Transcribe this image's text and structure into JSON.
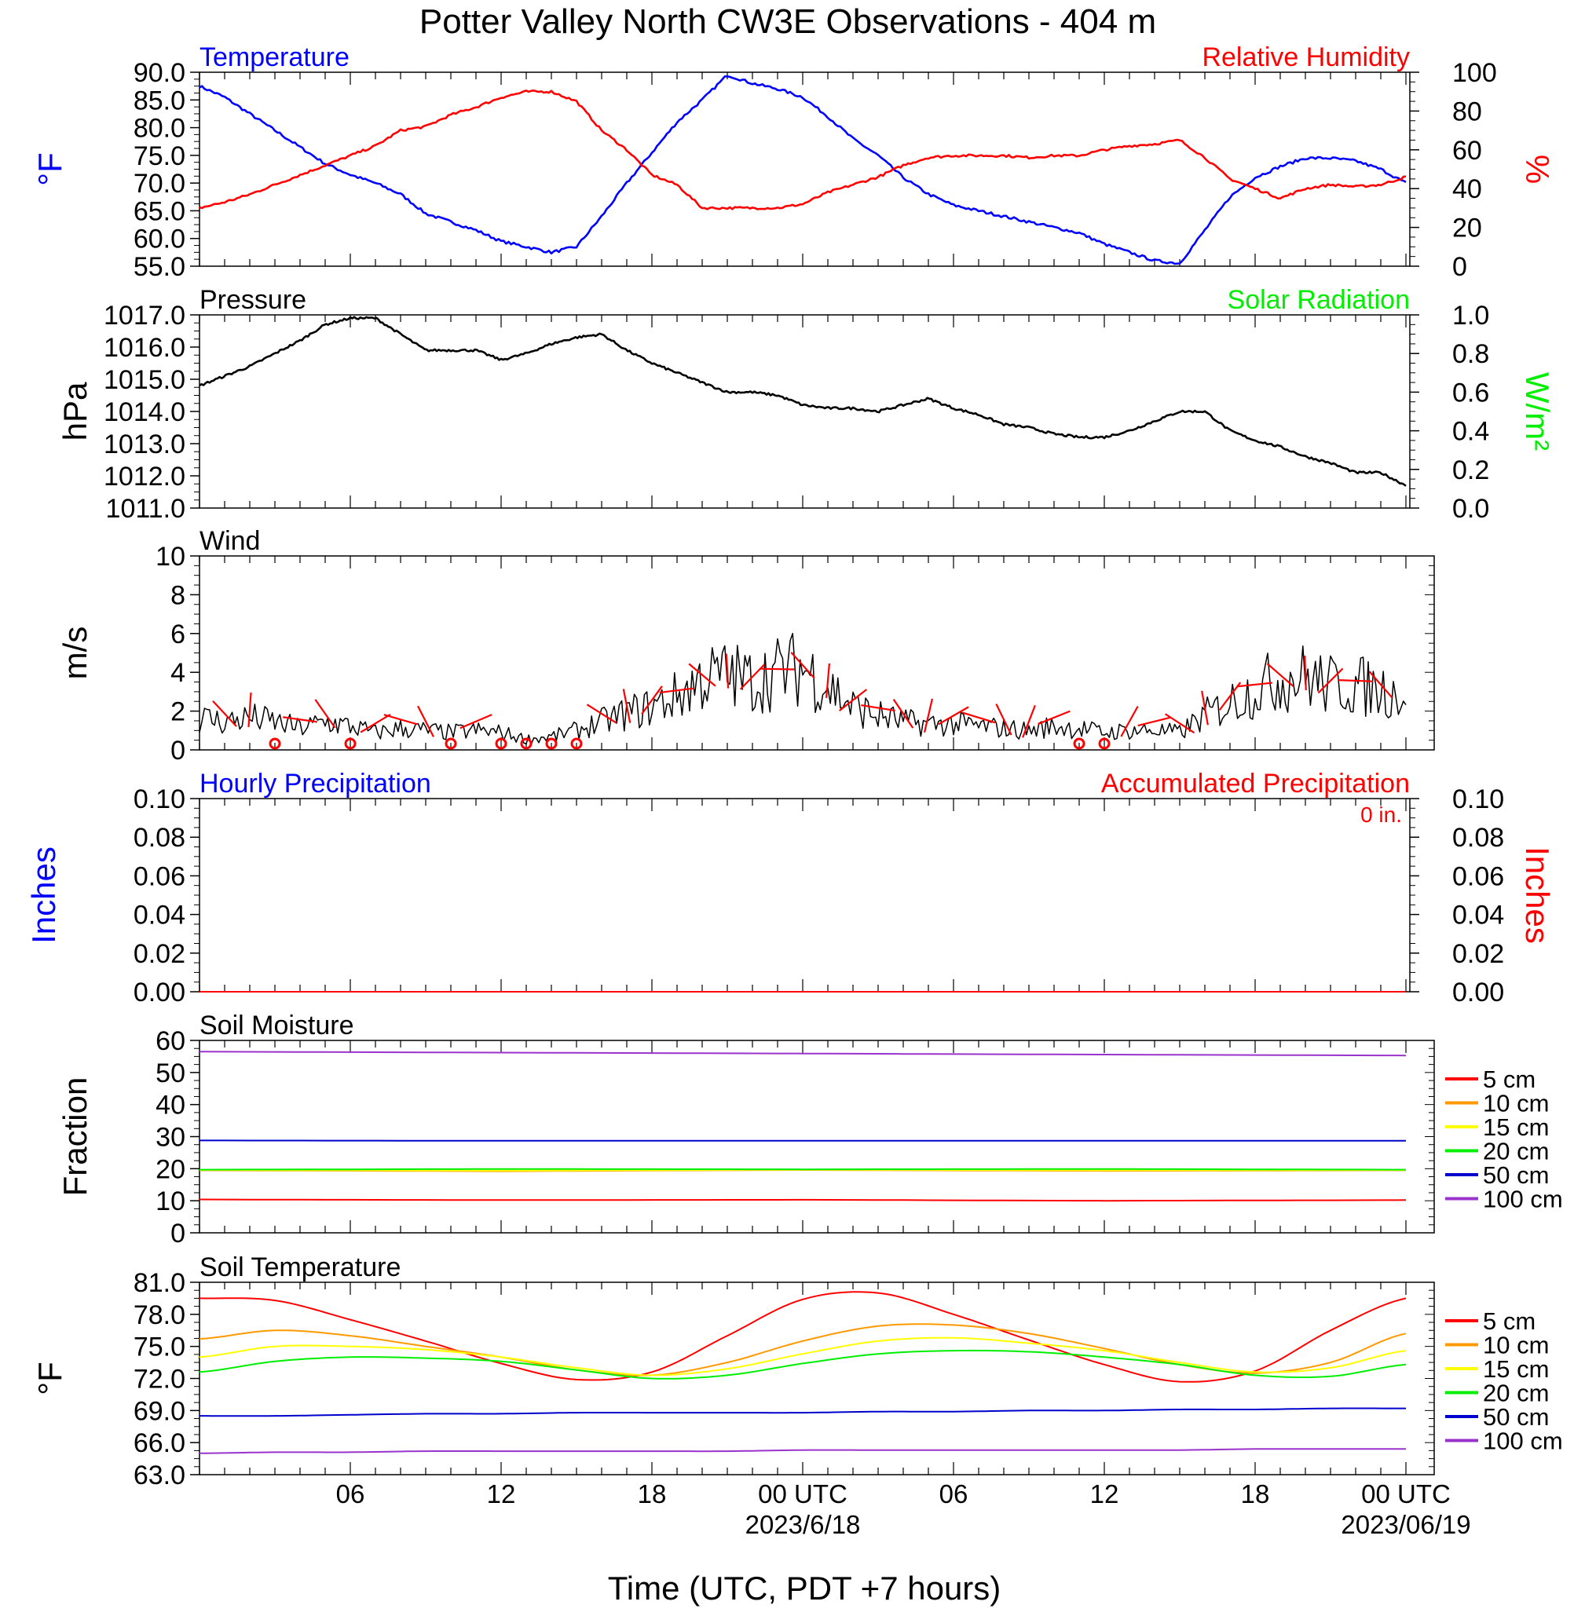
{
  "title": "Potter Valley North CW3E Observations - 404 m",
  "xlabel": "Time (UTC, PDT +7 hours)",
  "x_ticks": [
    {
      "hour": 6,
      "label": "06",
      "date": ""
    },
    {
      "hour": 12,
      "label": "12",
      "date": ""
    },
    {
      "hour": 18,
      "label": "18",
      "date": ""
    },
    {
      "hour": 24,
      "label": "00 UTC",
      "date": "2023/6/18"
    },
    {
      "hour": 30,
      "label": "06",
      "date": ""
    },
    {
      "hour": 36,
      "label": "12",
      "date": ""
    },
    {
      "hour": 42,
      "label": "18",
      "date": ""
    },
    {
      "hour": 48,
      "label": "00 UTC",
      "date": "2023/06/19"
    }
  ],
  "colors": {
    "blue": "#0000ff",
    "red": "#ff0000",
    "green": "#00ee00",
    "black": "#000000",
    "orange": "#ff9900",
    "yellow": "#ffff00",
    "purple": "#9933cc"
  },
  "chart_data": [
    {
      "id": "temp_rh",
      "type": "line",
      "title_left": "Temperature",
      "title_right": "Relative Humidity",
      "ylabel_left": "°F",
      "ylabel_right": "%",
      "ylim_left": [
        55,
        90
      ],
      "ylim_right": [
        0,
        100
      ],
      "yticks_left": [
        "55.0",
        "60.0",
        "65.0",
        "70.0",
        "75.0",
        "80.0",
        "85.0",
        "90.0"
      ],
      "yticks_right": [
        "0",
        "20",
        "40",
        "60",
        "80",
        "100"
      ],
      "x_hours": [
        0,
        1,
        2,
        3,
        4,
        5,
        6,
        7,
        8,
        9,
        10,
        11,
        12,
        13,
        14,
        15,
        16,
        17,
        18,
        19,
        20,
        21,
        22,
        23,
        24,
        25,
        26,
        27,
        28,
        29,
        30,
        31,
        32,
        33,
        34,
        35,
        36,
        37,
        38,
        39,
        40,
        41,
        42,
        43,
        44,
        45,
        46,
        47,
        48
      ],
      "series": [
        {
          "name": "Temperature",
          "axis": "left",
          "color": "#0000ff",
          "values": [
            87.5,
            85.5,
            82.5,
            79.5,
            76.5,
            73.5,
            71.5,
            70.0,
            68.0,
            64.5,
            63.0,
            61.5,
            59.5,
            58.5,
            57.5,
            58.5,
            64.0,
            70.0,
            75.5,
            81.0,
            85.0,
            89.5,
            88.0,
            87.0,
            85.5,
            82.0,
            78.0,
            75.0,
            71.0,
            68.0,
            66.0,
            65.0,
            64.0,
            63.0,
            62.0,
            61.0,
            59.0,
            57.5,
            56.0,
            55.5,
            61.5,
            67.5,
            71.0,
            73.0,
            74.5,
            74.5,
            74.0,
            72.5,
            70.0
          ]
        },
        {
          "name": "Relative Humidity",
          "axis": "right",
          "color": "#ff0000",
          "values": [
            30,
            33,
            37,
            42,
            47,
            52,
            57,
            62,
            70,
            72,
            78,
            82,
            87,
            90,
            90,
            85,
            70,
            60,
            47,
            42,
            30,
            30,
            30,
            30,
            32,
            38,
            42,
            46,
            52,
            56,
            57,
            57,
            57,
            56,
            57,
            57,
            60,
            62,
            63,
            65,
            56,
            45,
            40,
            35,
            40,
            42,
            41,
            42,
            46
          ]
        }
      ]
    },
    {
      "id": "pressure",
      "type": "line",
      "title_left": "Pressure",
      "title_right": "Solar Radiation",
      "ylabel_left": "hPa",
      "ylabel_right": "W/m²",
      "ylim_left": [
        1011,
        1017
      ],
      "ylim_right": [
        0,
        1
      ],
      "yticks_left": [
        "1011.0",
        "1012.0",
        "1013.0",
        "1014.0",
        "1015.0",
        "1016.0",
        "1017.0"
      ],
      "yticks_right": [
        "0.0",
        "0.2",
        "0.4",
        "0.6",
        "0.8",
        "1.0"
      ],
      "x_hours": [
        0,
        1,
        2,
        3,
        4,
        5,
        6,
        7,
        8,
        9,
        10,
        11,
        12,
        13,
        14,
        15,
        16,
        17,
        18,
        19,
        20,
        21,
        22,
        23,
        24,
        25,
        26,
        27,
        28,
        29,
        30,
        31,
        32,
        33,
        34,
        35,
        36,
        37,
        38,
        39,
        40,
        41,
        42,
        43,
        44,
        45,
        46,
        47,
        48
      ],
      "series": [
        {
          "name": "Pressure",
          "axis": "left",
          "color": "#000000",
          "values": [
            1014.8,
            1015.1,
            1015.4,
            1015.8,
            1016.2,
            1016.7,
            1016.9,
            1016.9,
            1016.4,
            1015.9,
            1015.9,
            1015.9,
            1015.6,
            1015.8,
            1016.1,
            1016.3,
            1016.4,
            1015.9,
            1015.5,
            1015.2,
            1014.9,
            1014.6,
            1014.6,
            1014.5,
            1014.2,
            1014.1,
            1014.1,
            1014.0,
            1014.2,
            1014.4,
            1014.1,
            1013.9,
            1013.6,
            1013.5,
            1013.3,
            1013.2,
            1013.2,
            1013.4,
            1013.7,
            1014.0,
            1014.0,
            1013.4,
            1013.1,
            1012.9,
            1012.6,
            1012.4,
            1012.1,
            1012.1,
            1011.7
          ]
        }
      ]
    },
    {
      "id": "wind",
      "type": "line",
      "title_left": "Wind",
      "ylabel_left": "m/s",
      "ylim_left": [
        0,
        10
      ],
      "yticks_left": [
        "0",
        "2",
        "4",
        "6",
        "8",
        "10"
      ],
      "x_hours": [
        0,
        1,
        2,
        3,
        4,
        5,
        6,
        7,
        8,
        9,
        10,
        11,
        12,
        13,
        14,
        15,
        16,
        17,
        18,
        19,
        20,
        21,
        22,
        23,
        24,
        25,
        26,
        27,
        28,
        29,
        30,
        31,
        32,
        33,
        34,
        35,
        36,
        37,
        38,
        39,
        40,
        41,
        42,
        43,
        44,
        45,
        46,
        47,
        48
      ],
      "series": [
        {
          "name": "Wind speed",
          "axis": "left",
          "color": "#000000",
          "values": [
            1.5,
            1.3,
            1.5,
            1.3,
            1.0,
            1.3,
            1.1,
            0.8,
            1.0,
            0.9,
            0.8,
            0.9,
            0.8,
            0.5,
            0.6,
            0.9,
            1.3,
            1.7,
            2.0,
            2.5,
            3.3,
            3.5,
            3.2,
            3.6,
            3.8,
            3.0,
            2.0,
            1.6,
            1.3,
            1.2,
            1.2,
            1.1,
            1.0,
            0.9,
            1.1,
            1.0,
            0.8,
            0.9,
            0.9,
            0.8,
            1.6,
            2.2,
            2.8,
            3.3,
            3.4,
            3.0,
            3.0,
            2.8,
            2.6
          ]
        }
      ],
      "calm_hours": [
        3,
        6,
        10,
        12,
        13,
        14,
        15,
        35,
        36
      ]
    },
    {
      "id": "precip",
      "type": "line",
      "title_left": "Hourly Precipitation",
      "title_right": "Accumulated Precipitation",
      "annotation": "0 in.",
      "ylabel_left": "Inches",
      "ylabel_right": "Inches",
      "ylim_left": [
        0,
        0.1
      ],
      "ylim_right": [
        0,
        0.1
      ],
      "yticks_left": [
        "0.00",
        "0.02",
        "0.04",
        "0.06",
        "0.08",
        "0.10"
      ],
      "yticks_right": [
        "0.00",
        "0.02",
        "0.04",
        "0.06",
        "0.08",
        "0.10"
      ],
      "x_hours": [
        0,
        48
      ],
      "series": [
        {
          "name": "Hourly Precipitation",
          "axis": "left",
          "color": "#0000ff",
          "values": [
            0,
            0
          ]
        },
        {
          "name": "Accumulated Precipitation",
          "axis": "right",
          "color": "#ff0000",
          "values": [
            0,
            0
          ]
        }
      ]
    },
    {
      "id": "soil_moisture",
      "type": "line",
      "title_left": "Soil Moisture",
      "ylabel_left": "Fraction",
      "ylim_left": [
        0,
        60
      ],
      "yticks_left": [
        "0",
        "10",
        "20",
        "30",
        "40",
        "50",
        "60"
      ],
      "x_hours": [
        0,
        12,
        24,
        36,
        48
      ],
      "series": [
        {
          "name": "5 cm",
          "axis": "left",
          "color": "#ff0000",
          "values": [
            10.4,
            10.2,
            10.3,
            10.0,
            10.2
          ]
        },
        {
          "name": "10 cm",
          "axis": "left",
          "color": "#ff9900",
          "values": [
            19.5,
            19.2,
            19.6,
            19.3,
            19.5
          ]
        },
        {
          "name": "15 cm",
          "axis": "left",
          "color": "#ffff00",
          "values": [
            19.6,
            19.4,
            19.7,
            19.5,
            19.6
          ]
        },
        {
          "name": "20 cm",
          "axis": "left",
          "color": "#00ee00",
          "values": [
            19.7,
            19.9,
            19.8,
            19.9,
            19.7
          ]
        },
        {
          "name": "50 cm",
          "axis": "left",
          "color": "#0000cc",
          "values": [
            28.8,
            28.7,
            28.7,
            28.7,
            28.7
          ]
        },
        {
          "name": "100 cm",
          "axis": "left",
          "color": "#9933cc",
          "values": [
            56.5,
            56.2,
            55.9,
            55.6,
            55.3
          ]
        }
      ]
    },
    {
      "id": "soil_temperature",
      "type": "line",
      "title_left": "Soil Temperature",
      "ylabel_left": "°F",
      "ylim_left": [
        63,
        81
      ],
      "yticks_left": [
        "63.0",
        "66.0",
        "69.0",
        "72.0",
        "75.0",
        "78.0",
        "81.0"
      ],
      "x_hours": [
        0,
        3,
        6,
        9,
        12,
        15,
        18,
        21,
        24,
        27,
        30,
        33,
        36,
        39,
        42,
        45,
        48
      ],
      "series": [
        {
          "name": "5 cm",
          "axis": "left",
          "color": "#ff0000",
          "values": [
            79.5,
            79.3,
            77.5,
            75.5,
            73.4,
            71.9,
            72.6,
            76.0,
            79.4,
            80.0,
            78.0,
            75.6,
            73.3,
            71.7,
            72.7,
            76.5,
            79.5
          ]
        },
        {
          "name": "10 cm",
          "axis": "left",
          "color": "#ff9900",
          "values": [
            75.7,
            76.5,
            76.0,
            75.0,
            74.0,
            72.8,
            72.3,
            73.5,
            75.5,
            76.9,
            77.0,
            76.2,
            74.8,
            73.3,
            72.5,
            73.5,
            76.2
          ]
        },
        {
          "name": "15 cm",
          "axis": "left",
          "color": "#ffff00",
          "values": [
            74.0,
            75.0,
            75.0,
            74.7,
            74.0,
            73.0,
            72.3,
            72.9,
            74.3,
            75.5,
            75.8,
            75.3,
            74.6,
            73.5,
            72.6,
            73.0,
            74.6
          ]
        },
        {
          "name": "20 cm",
          "axis": "left",
          "color": "#00ee00",
          "values": [
            72.6,
            73.6,
            74.0,
            73.9,
            73.6,
            72.8,
            72.0,
            72.3,
            73.4,
            74.3,
            74.6,
            74.5,
            74.0,
            73.3,
            72.3,
            72.2,
            73.3
          ]
        },
        {
          "name": "50 cm",
          "axis": "left",
          "color": "#0000cc",
          "values": [
            68.5,
            68.5,
            68.6,
            68.7,
            68.7,
            68.8,
            68.8,
            68.8,
            68.8,
            68.9,
            68.9,
            69.0,
            69.0,
            69.1,
            69.1,
            69.2,
            69.2
          ]
        },
        {
          "name": "100 cm",
          "axis": "left",
          "color": "#9933cc",
          "values": [
            65.0,
            65.1,
            65.1,
            65.2,
            65.2,
            65.2,
            65.2,
            65.2,
            65.3,
            65.3,
            65.3,
            65.3,
            65.3,
            65.3,
            65.4,
            65.4,
            65.4
          ]
        }
      ]
    }
  ]
}
